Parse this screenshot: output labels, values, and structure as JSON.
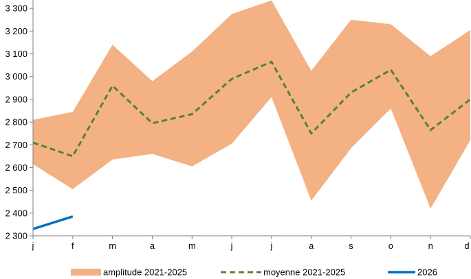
{
  "chart_data": {
    "type": "area",
    "categories": [
      "j",
      "f",
      "m",
      "a",
      "m",
      "j",
      "j",
      "a",
      "s",
      "o",
      "n",
      "d"
    ],
    "ylim": [
      2300,
      3400
    ],
    "yticks": [
      2300,
      2400,
      2500,
      2600,
      2700,
      2800,
      2900,
      3000,
      3100,
      3200,
      3300
    ],
    "ytick_labels": [
      "2 300",
      "2 400",
      "2 500",
      "2 600",
      "2 700",
      "2 800",
      "2 900",
      "3 000",
      "3 100",
      "3 200",
      "3 300"
    ],
    "legend_position": "bottom",
    "series": [
      {
        "name": "amplitude 2021-2025",
        "kind": "band",
        "color": "#F4B183",
        "lower": [
          2615,
          2505,
          2635,
          2660,
          2605,
          2705,
          2910,
          2455,
          2685,
          2860,
          2420,
          2720
        ],
        "upper": [
          2810,
          2845,
          3140,
          2980,
          3110,
          3275,
          3335,
          3025,
          3250,
          3230,
          3090,
          3205
        ]
      },
      {
        "name": "moyenne 2021-2025",
        "kind": "dashed-line",
        "color": "#548235",
        "values": [
          2710,
          2650,
          2960,
          2795,
          2835,
          2990,
          3065,
          2750,
          2930,
          3030,
          2765,
          2900
        ]
      },
      {
        "name": "2026",
        "kind": "line",
        "color": "#0070C0",
        "values": [
          2330,
          2385,
          null,
          null,
          null,
          null,
          null,
          null,
          null,
          null,
          null,
          null
        ]
      }
    ]
  }
}
